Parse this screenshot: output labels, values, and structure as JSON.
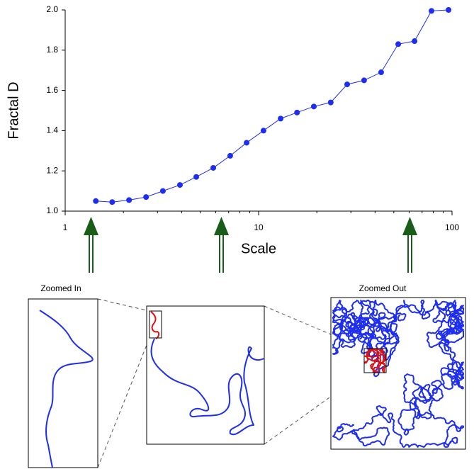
{
  "chart_data": {
    "type": "line",
    "xlabel": "Scale",
    "ylabel": "Fractal D",
    "x": [
      1.44,
      1.75,
      2.14,
      2.62,
      3.2,
      3.92,
      4.76,
      5.83,
      7.13,
      8.67,
      10.6,
      13.0,
      15.8,
      19.3,
      23.6,
      28.7,
      35.1,
      43.0,
      52.7,
      64.0,
      78.3,
      95.9
    ],
    "series": [
      {
        "color": "#1e2ef0",
        "values": [
          1.05,
          1.045,
          1.055,
          1.07,
          1.1,
          1.13,
          1.17,
          1.215,
          1.275,
          1.34,
          1.4,
          1.46,
          1.49,
          1.52,
          1.54,
          1.63,
          1.65,
          1.69,
          1.83,
          1.845,
          1.995,
          2.0
        ]
      }
    ],
    "xlim": [
      1,
      100
    ],
    "ylim": [
      1,
      2
    ],
    "xlog": true,
    "xticks": [
      1,
      10,
      100
    ],
    "yticks": [
      {
        "value": 1,
        "label": "1.0"
      },
      {
        "value": 1.2,
        "label": "1.2"
      },
      {
        "value": 1.4,
        "label": "1.4"
      },
      {
        "value": 1.6,
        "label": "1.6"
      },
      {
        "value": 1.8,
        "label": "1.8"
      },
      {
        "value": 2,
        "label": "2.0"
      }
    ]
  },
  "annotations": {
    "zoomed_in": "Zoomed In",
    "zoomed_out": "Zoomed Out"
  }
}
